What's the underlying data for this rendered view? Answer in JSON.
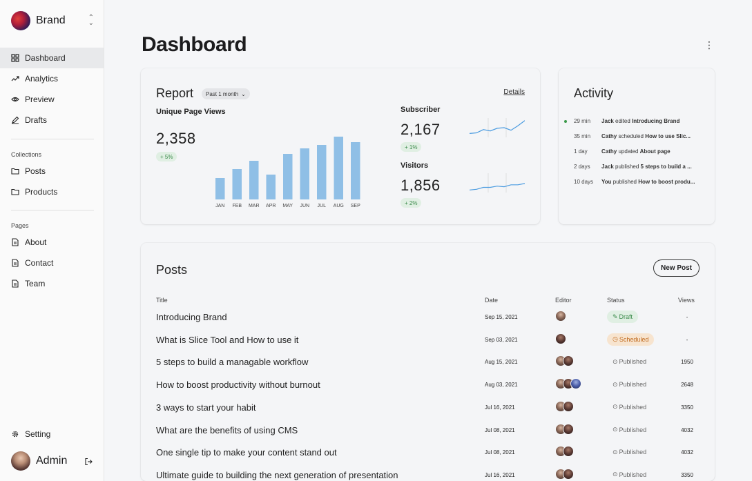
{
  "sidebar": {
    "brand": "Brand",
    "nav": [
      {
        "label": "Dashboard",
        "icon": "grid-icon",
        "active": true
      },
      {
        "label": "Analytics",
        "icon": "trend-icon"
      },
      {
        "label": "Preview",
        "icon": "eye-icon"
      },
      {
        "label": "Drafts",
        "icon": "pencil-icon"
      }
    ],
    "collections_label": "Collections",
    "collections": [
      {
        "label": "Posts",
        "icon": "folder-icon"
      },
      {
        "label": "Products",
        "icon": "folder-icon"
      }
    ],
    "pages_label": "Pages",
    "pages": [
      {
        "label": "About",
        "icon": "document-icon"
      },
      {
        "label": "Contact",
        "icon": "document-icon"
      },
      {
        "label": "Team",
        "icon": "document-icon"
      }
    ],
    "setting": "Setting",
    "user": "Admin"
  },
  "main": {
    "title": "Dashboard"
  },
  "report": {
    "title": "Report",
    "period": "Past 1 month",
    "details": "Details",
    "unique_label": "Unique Page Views",
    "unique_value": "2,358",
    "unique_change": "+ 5%",
    "subscriber_label": "Subscriber",
    "subscriber_value": "2,167",
    "subscriber_change": "+ 1%",
    "visitors_label": "Visitors",
    "visitors_value": "1,856",
    "visitors_change": "+ 2%"
  },
  "chart_data": [
    {
      "type": "bar",
      "categories": [
        "JAN",
        "FEB",
        "MAR",
        "APR",
        "MAY",
        "JUN",
        "JUL",
        "AUG",
        "SEP"
      ],
      "values": [
        31,
        44,
        56,
        36,
        66,
        74,
        79,
        91,
        83
      ],
      "title": "Unique Page Views",
      "color": "#8fbfe6"
    },
    {
      "type": "line",
      "title": "Subscriber",
      "values": [
        6,
        7,
        12,
        10,
        14,
        15,
        11,
        18,
        26
      ],
      "color": "#4a9be0"
    },
    {
      "type": "line",
      "title": "Visitors",
      "values": [
        4,
        5,
        8,
        8,
        10,
        9,
        12,
        12,
        14
      ],
      "color": "#4a9be0"
    }
  ],
  "activity": {
    "title": "Activity",
    "items": [
      {
        "time": "29 min",
        "user": "Jack",
        "action": "edited",
        "target": "Introducing Brand",
        "live": true
      },
      {
        "time": "35 min",
        "user": "Cathy",
        "action": "scheduled",
        "target": "How to use Slic..."
      },
      {
        "time": "1 day",
        "user": "Cathy",
        "action": "updated",
        "target": "About page"
      },
      {
        "time": "2 days",
        "user": "Jack",
        "action": "published",
        "target": "5 steps to build a ..."
      },
      {
        "time": "10 days",
        "user": "You",
        "action": "published",
        "target": "How to boost produ..."
      }
    ]
  },
  "posts": {
    "title": "Posts",
    "new_post": "New Post",
    "columns": [
      "Title",
      "Date",
      "Editor",
      "Status",
      "Views"
    ],
    "rows": [
      {
        "title": "Introducing Brand",
        "date": "Sep 15, 2021",
        "editors": 1,
        "status": "Draft",
        "views": "-"
      },
      {
        "title": "What is Slice Tool and How to use it",
        "date": "Sep 03, 2021",
        "editors": 1,
        "status": "Scheduled",
        "views": "-"
      },
      {
        "title": "5 steps to build a managable workflow",
        "date": "Aug 15, 2021",
        "editors": 2,
        "status": "Published",
        "views": "1950"
      },
      {
        "title": "How to boost productivity without burnout",
        "date": "Aug 03, 2021",
        "editors": 3,
        "status": "Published",
        "views": "2648"
      },
      {
        "title": "3 ways to start your habit",
        "date": "Jul 16, 2021",
        "editors": 2,
        "status": "Published",
        "views": "3350"
      },
      {
        "title": "What are the benefits of using CMS",
        "date": "Jul 08, 2021",
        "editors": 2,
        "status": "Published",
        "views": "4032"
      },
      {
        "title": "One single tip to make your content stand out",
        "date": "Jul 08, 2021",
        "editors": 2,
        "status": "Published",
        "views": "4032"
      },
      {
        "title": "Ultimate guide to building the next generation of presentation",
        "date": "Jul 16, 2021",
        "editors": 2,
        "status": "Published",
        "views": "3350"
      }
    ]
  },
  "colors": {
    "accent": "#8fbfe6",
    "line": "#4a9be0",
    "positive": "#3a8a4a",
    "warning": "#c06a1e"
  }
}
